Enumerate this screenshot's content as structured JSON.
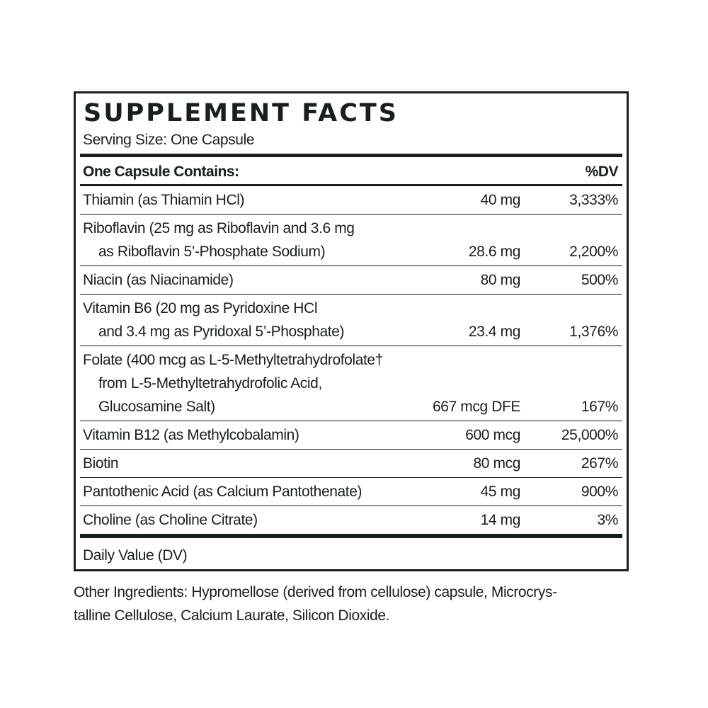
{
  "label": {
    "title": "SUPPLEMENT FACTS",
    "serving_size": "Serving Size: One Capsule",
    "header_left": "One Capsule Contains:",
    "header_right": "%DV",
    "rows": [
      {
        "lines": [
          "Thiamin (as Thiamin HCl)"
        ],
        "amount": "40 mg",
        "dv": "3,333%"
      },
      {
        "lines": [
          "Riboflavin (25 mg as Riboflavin and 3.6 mg",
          "as Riboflavin 5’-Phosphate Sodium)"
        ],
        "amount": "28.6 mg",
        "dv": "2,200%"
      },
      {
        "lines": [
          "Niacin (as Niacinamide)"
        ],
        "amount": "80 mg",
        "dv": "500%"
      },
      {
        "lines": [
          "Vitamin B6 (20 mg as Pyridoxine HCl",
          "and 3.4 mg as Pyridoxal 5’-Phosphate)"
        ],
        "amount": "23.4 mg",
        "dv": "1,376%"
      },
      {
        "lines": [
          "Folate (400 mcg as L-5-Methyltetrahydrofolate†",
          "from L-5-Methyltetrahydrofolic Acid,",
          "Glucosamine Salt)"
        ],
        "amount": "667 mcg DFE",
        "dv": "167%"
      },
      {
        "lines": [
          "Vitamin B12 (as Methylcobalamin)"
        ],
        "amount": "600 mcg",
        "dv": "25,000%"
      },
      {
        "lines": [
          "Biotin"
        ],
        "amount": "80 mcg",
        "dv": "267%"
      },
      {
        "lines": [
          "Pantothenic Acid (as Calcium Pantothenate)"
        ],
        "amount": "45 mg",
        "dv": "900%"
      },
      {
        "lines": [
          "Choline (as Choline Citrate)"
        ],
        "amount": "14 mg",
        "dv": "3%"
      }
    ],
    "footer": "Daily Value (DV)"
  },
  "other_ingredients": {
    "line1": "Other Ingredients: Hypromellose (derived from cellulose) capsule, Microcrys-",
    "line2": "talline Cellulose, Calcium Laurate, Silicon Dioxide."
  },
  "colors": {
    "ink": "#17201b",
    "background": "#ffffff"
  }
}
